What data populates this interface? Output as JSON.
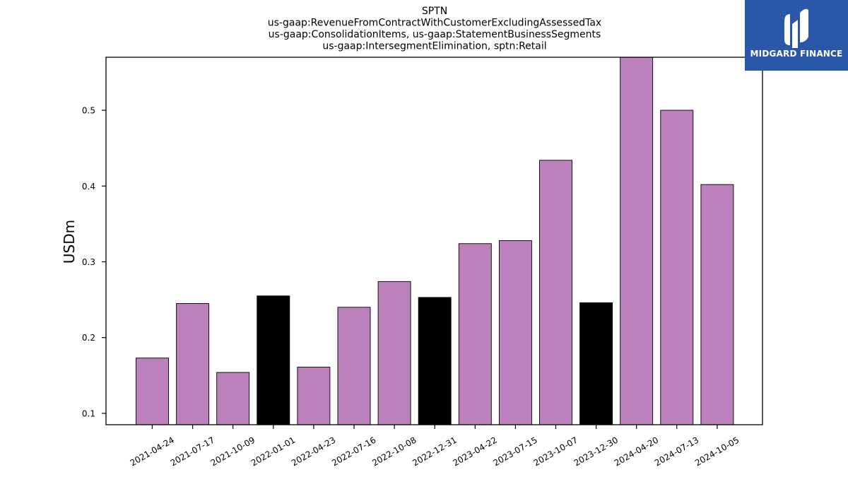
{
  "chart_data": {
    "type": "bar",
    "title_lines": [
      "SPTN",
      "us-gaap:RevenueFromContractWithCustomerExcludingAssessedTax",
      "us-gaap:ConsolidationItems, us-gaap:StatementBusinessSegments",
      "us-gaap:IntersegmentElimination, sptn:Retail"
    ],
    "ylabel": "USDm",
    "xlabel": "",
    "ylim": [
      0.085,
      0.57
    ],
    "yticks": [
      0.1,
      0.2,
      0.3,
      0.4,
      0.5
    ],
    "ytick_labels": [
      "0.1",
      "0.2",
      "0.3",
      "0.4",
      "0.5"
    ],
    "grid": false,
    "categories": [
      "2021-04-24",
      "2021-07-17",
      "2021-10-09",
      "2022-01-01",
      "2022-04-23",
      "2022-07-16",
      "2022-10-08",
      "2022-12-31",
      "2023-04-22",
      "2023-07-15",
      "2023-10-07",
      "2023-12-30",
      "2024-04-20",
      "2024-07-13",
      "2024-10-05"
    ],
    "values": [
      0.173,
      0.245,
      0.154,
      0.255,
      0.161,
      0.24,
      0.274,
      0.253,
      0.324,
      0.328,
      0.434,
      0.246,
      0.57,
      0.5,
      0.402
    ],
    "colors": [
      "#bc80bd",
      "#bc80bd",
      "#bc80bd",
      "#000000",
      "#bc80bd",
      "#bc80bd",
      "#bc80bd",
      "#000000",
      "#bc80bd",
      "#bc80bd",
      "#bc80bd",
      "#000000",
      "#bc80bd",
      "#bc80bd",
      "#bc80bd"
    ]
  },
  "logo": {
    "text": "MIDGARD FINANCE",
    "background": "#2b57a8"
  }
}
